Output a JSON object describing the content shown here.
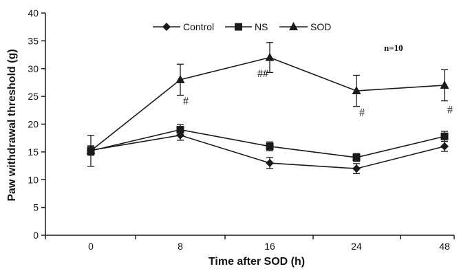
{
  "chart_data": {
    "type": "line",
    "xlabel": "Time after SOD (h)",
    "ylabel": "Paw withdrawal threshold (g)",
    "categories": [
      "0",
      "8",
      "16",
      "24",
      "48"
    ],
    "ylim": [
      0,
      40
    ],
    "yticks": [
      0,
      5,
      10,
      15,
      20,
      25,
      30,
      35,
      40
    ],
    "grid": false,
    "legend_position": "top-center",
    "series": [
      {
        "name": "Control",
        "marker": "diamond",
        "values": [
          15.3,
          18.0,
          13.0,
          12.0,
          16.0
        ],
        "errors": [
          0.8,
          0.9,
          1.0,
          0.9,
          0.9
        ]
      },
      {
        "name": "NS",
        "marker": "square",
        "values": [
          15.2,
          19.0,
          16.0,
          14.0,
          17.8
        ],
        "errors": [
          0.8,
          0.9,
          0.8,
          0.7,
          0.9
        ]
      },
      {
        "name": "SOD",
        "marker": "triangle",
        "values": [
          15.2,
          28.0,
          32.0,
          26.0,
          27.0
        ],
        "errors": [
          2.8,
          2.8,
          2.7,
          2.8,
          2.8
        ]
      }
    ],
    "annotations": [
      {
        "text": "#",
        "category": "8",
        "y": 23.5
      },
      {
        "text": "##",
        "category": "16",
        "y": 28.5
      },
      {
        "text": "#",
        "category": "24",
        "y": 21.5
      },
      {
        "text": "#",
        "category": "48",
        "y": 22.0
      }
    ],
    "note": "n=10",
    "color": "#1a1a1a"
  }
}
